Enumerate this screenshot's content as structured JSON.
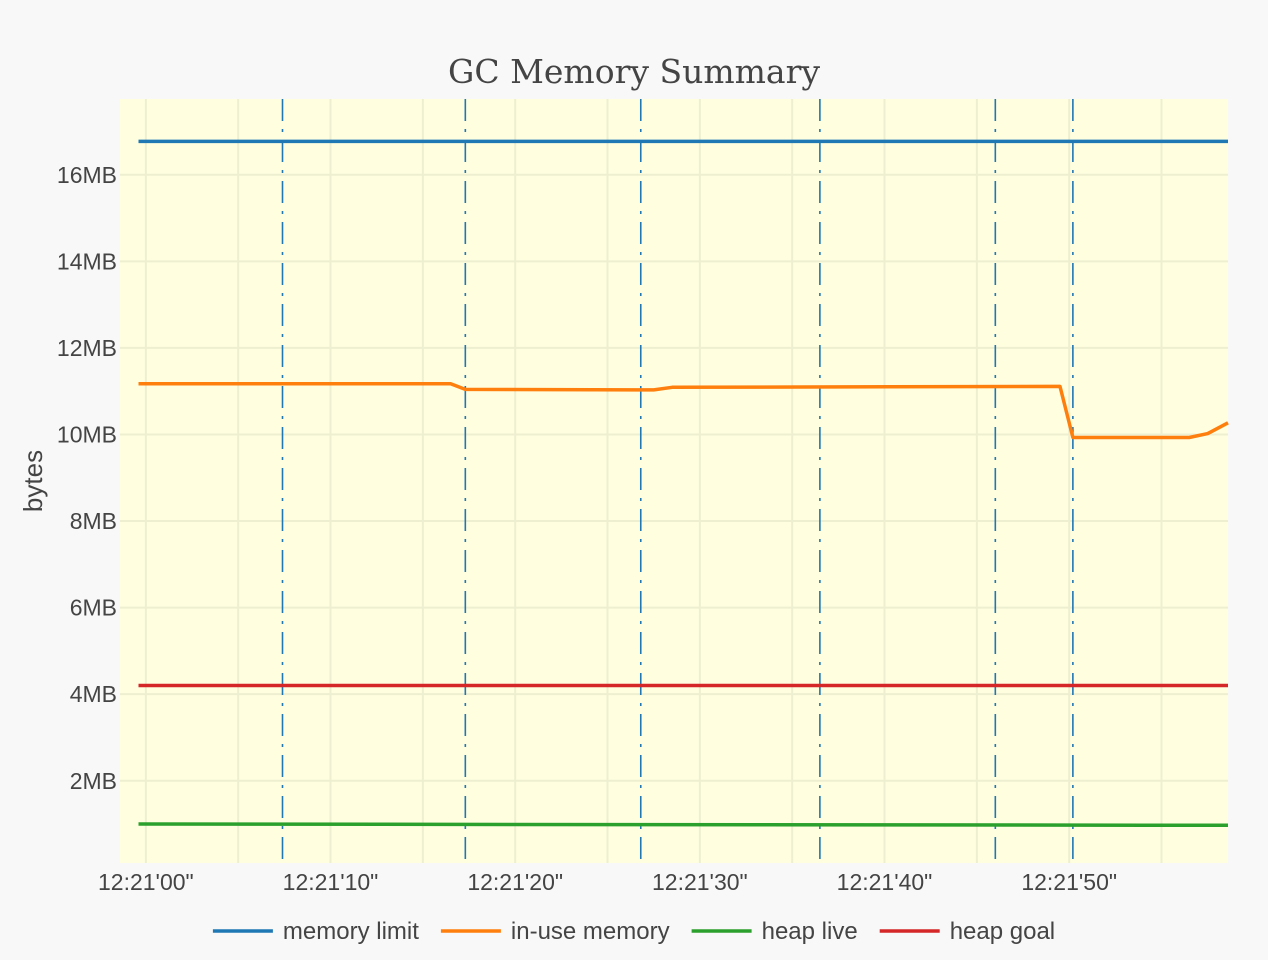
{
  "chart_data": {
    "type": "line",
    "title": "GC Memory Summary",
    "xlabel": "",
    "ylabel": "bytes",
    "x_tick_labels": [
      "12:21'00\"",
      "12:21'10\"",
      "12:21'20\"",
      "12:21'30\"",
      "12:21'40\"",
      "12:21'50\""
    ],
    "x_tick_values_s": [
      0,
      10,
      20,
      30,
      40,
      50
    ],
    "xlim_s": [
      -1.4,
      58.6
    ],
    "y_tick_labels": [
      "2MB",
      "4MB",
      "6MB",
      "8MB",
      "10MB",
      "12MB",
      "14MB",
      "16MB"
    ],
    "y_tick_values_mb": [
      2,
      4,
      6,
      8,
      10,
      12,
      14,
      16
    ],
    "ylim_mb": [
      0.1,
      17.75
    ],
    "grid": true,
    "plot_background": "#ffffe0",
    "legend_position": "bottom",
    "gc_events_s": [
      7.4,
      17.3,
      26.8,
      36.5,
      46.0,
      50.2
    ],
    "gc_event_color": "#1f77b4",
    "series": [
      {
        "name": "memory limit",
        "color": "#1f77b4",
        "x": [
          -0.4,
          58.6
        ],
        "y": [
          16.77,
          16.77
        ]
      },
      {
        "name": "in-use memory",
        "color": "#ff7f0e",
        "x": [
          -0.4,
          16.5,
          17.3,
          27.5,
          28.5,
          49.5,
          50.2,
          56.5,
          57.5,
          58.6
        ],
        "y": [
          11.17,
          11.17,
          11.04,
          11.03,
          11.09,
          11.11,
          9.93,
          9.93,
          10.02,
          10.27
        ]
      },
      {
        "name": "heap live",
        "color": "#2ca02c",
        "x": [
          -0.4,
          58.6
        ],
        "y": [
          1.0,
          0.97
        ]
      },
      {
        "name": "heap goal",
        "color": "#d62728",
        "x": [
          -0.4,
          58.6
        ],
        "y": [
          4.2,
          4.2
        ]
      }
    ]
  }
}
